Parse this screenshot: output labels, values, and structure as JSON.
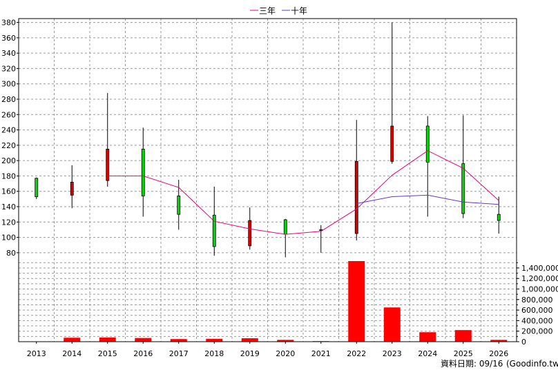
{
  "chart_data": {
    "type": "candlestick",
    "categories": [
      "2013",
      "2014",
      "2015",
      "2016",
      "2017",
      "2018",
      "2019",
      "2020",
      "2021",
      "2022",
      "2023",
      "2024",
      "2025",
      "2026"
    ],
    "candles": [
      {
        "open": 153,
        "close": 177,
        "high": 178,
        "low": 150
      },
      {
        "open": 172,
        "close": 155,
        "high": 194,
        "low": 138
      },
      {
        "open": 215,
        "close": 174,
        "high": 288,
        "low": 166
      },
      {
        "open": 154,
        "close": 215,
        "high": 243,
        "low": 127
      },
      {
        "open": 130,
        "close": 154,
        "high": 175,
        "low": 110
      },
      {
        "open": 88,
        "close": 129,
        "high": 166,
        "low": 76
      },
      {
        "open": 122,
        "close": 89,
        "high": 139,
        "low": 84
      },
      {
        "open": 104,
        "close": 123,
        "high": 124,
        "low": 74
      },
      {
        "open": 109,
        "close": 110,
        "high": 116,
        "low": 80
      },
      {
        "open": 199,
        "close": 105,
        "high": 253,
        "low": 96
      },
      {
        "open": 245,
        "close": 199,
        "high": 380,
        "low": 196
      },
      {
        "open": 198,
        "close": 245,
        "high": 258,
        "low": 127
      },
      {
        "open": 131,
        "close": 196,
        "high": 259,
        "low": 125
      },
      {
        "open": 122,
        "close": 130,
        "high": 153,
        "low": 105
      }
    ],
    "series": [
      {
        "name": "三年",
        "color": "#ee0077",
        "values": [
          null,
          null,
          180,
          180,
          165,
          121,
          111,
          104,
          108,
          137,
          181,
          213,
          190,
          148
        ]
      },
      {
        "name": "十年",
        "color": "#6633cc",
        "values": [
          null,
          null,
          null,
          null,
          null,
          null,
          null,
          null,
          null,
          144,
          153,
          155,
          146,
          143
        ]
      }
    ],
    "volume": [
      0,
      75000,
      80000,
      70000,
      50000,
      55000,
      65000,
      35000,
      10000,
      1530000,
      650000,
      180000,
      220000,
      35000
    ],
    "ylim": [
      70,
      385
    ],
    "y_ticks": [
      80,
      100,
      120,
      140,
      160,
      180,
      200,
      220,
      240,
      260,
      280,
      300,
      320,
      340,
      360,
      380
    ],
    "volume_lim": [
      0,
      1530000
    ],
    "volume_ticks": [
      0,
      200000,
      400000,
      600000,
      800000,
      1000000,
      1200000,
      1400000
    ],
    "volume_tick_labels": [
      "0",
      "200,000",
      "400,000",
      "600,000",
      "800,000",
      "1,000,000",
      "1,200,000",
      "1,400,000"
    ],
    "legend_position": "top-center",
    "grid": true,
    "colors": {
      "up": "#00dd00",
      "down": "#dd0000",
      "volume": "#ff0000",
      "grid": "#999999"
    }
  },
  "source_label": "資料日期: 09/16",
  "source_site": "(Goodinfo.tw)"
}
